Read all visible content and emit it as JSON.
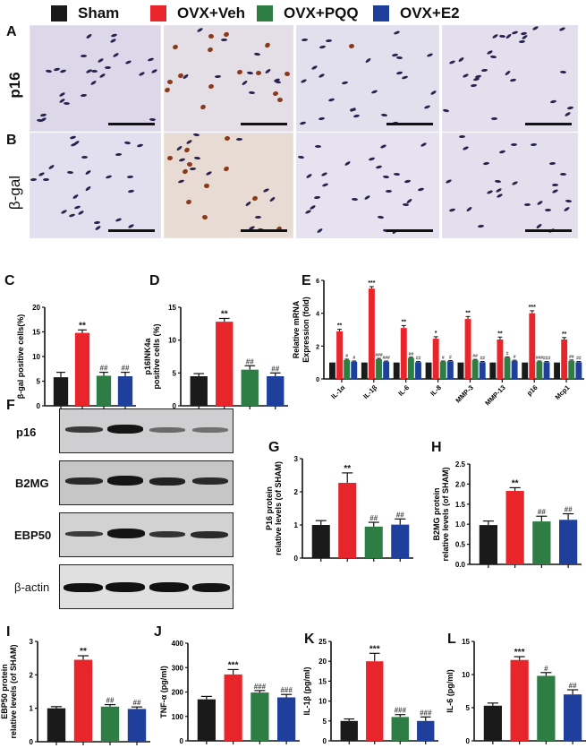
{
  "legend": {
    "items": [
      {
        "label": "Sham",
        "color": "#1a1a1a"
      },
      {
        "label": "OVX+Veh",
        "color": "#e8252b"
      },
      {
        "label": "OVX+PQQ",
        "color": "#2e7d45"
      },
      {
        "label": "OVX+E2",
        "color": "#1e3f9c"
      }
    ]
  },
  "panels": {
    "A": {
      "letter": "A",
      "row_label": "p16"
    },
    "B": {
      "letter": "B",
      "row_label": "β-gal"
    },
    "C": {
      "letter": "C"
    },
    "D": {
      "letter": "D"
    },
    "E": {
      "letter": "E"
    },
    "F": {
      "letter": "F",
      "blots": [
        "p16",
        "B2MG",
        "EBP50",
        "β-actin"
      ]
    },
    "G": {
      "letter": "G"
    },
    "H": {
      "letter": "H"
    },
    "I": {
      "letter": "I"
    },
    "J": {
      "letter": "J"
    },
    "K": {
      "letter": "K"
    },
    "L": {
      "letter": "L"
    }
  },
  "chart_data": [
    {
      "id": "C",
      "type": "bar",
      "categories": [
        "Sham",
        "OVX+Veh",
        "OVX+PQQ",
        "OVX+E2"
      ],
      "values": [
        5.8,
        14.8,
        6.1,
        6.0
      ],
      "errors": [
        1.0,
        0.6,
        0.7,
        0.8
      ],
      "annotations": [
        "",
        "**",
        "##",
        "##"
      ],
      "ylabel": "β-gal positive cells(%)",
      "ylim": [
        0,
        20
      ],
      "yticks": [
        0,
        5,
        10,
        15,
        20
      ]
    },
    {
      "id": "D",
      "type": "bar",
      "categories": [
        "Sham",
        "OVX+Veh",
        "OVX+PQQ",
        "OVX+E2"
      ],
      "values": [
        4.5,
        12.8,
        5.5,
        4.5
      ],
      "errors": [
        0.4,
        0.5,
        0.6,
        0.5
      ],
      "annotations": [
        "",
        "**",
        "##",
        "##"
      ],
      "ylabel": "p16INK4a positive cells (%)",
      "ylim": [
        0,
        15
      ],
      "yticks": [
        0,
        5,
        10,
        15
      ]
    },
    {
      "id": "E",
      "type": "bar",
      "categories": [
        "IL-1α",
        "IL-1β",
        "IL-6",
        "IL-8",
        "MMP-3",
        "MMP-13",
        "p16",
        "Mcp1"
      ],
      "series": [
        {
          "name": "Sham",
          "values": [
            1.0,
            1.0,
            1.0,
            1.0,
            1.0,
            1.0,
            1.0,
            1.0
          ],
          "errors": [
            0,
            0,
            0,
            0,
            0,
            0,
            0,
            0
          ]
        },
        {
          "name": "OVX+Veh",
          "values": [
            2.9,
            5.5,
            3.1,
            2.45,
            3.65,
            2.4,
            4.0,
            2.4
          ],
          "errors": [
            0.12,
            0.12,
            0.15,
            0.12,
            0.15,
            0.15,
            0.15,
            0.12
          ]
        },
        {
          "name": "OVX+PQQ",
          "values": [
            1.15,
            1.2,
            1.28,
            1.05,
            1.15,
            1.3,
            1.05,
            1.1
          ],
          "errors": [
            0.05,
            0.05,
            0.04,
            0.04,
            0.04,
            0.04,
            0.04,
            0.05
          ]
        },
        {
          "name": "OVX+E2",
          "values": [
            1.05,
            1.05,
            1.02,
            1.08,
            1.02,
            1.1,
            1.02,
            1.02
          ],
          "errors": [
            0.04,
            0.04,
            0.04,
            0.04,
            0.04,
            0.04,
            0.04,
            0.04
          ]
        }
      ],
      "annotations": {
        "OVX+Veh": [
          "**",
          "***",
          "**",
          "*",
          "**",
          "**",
          "***",
          "**"
        ],
        "OVX+PQQ": [
          "#",
          "###",
          "##",
          "#",
          "##",
          "#",
          "###",
          "##"
        ],
        "OVX+E2": [
          "#",
          "###",
          "##",
          "#",
          "##",
          "#",
          "###",
          "##"
        ]
      },
      "ylabel": "Relative mRNA Expression (fold)",
      "ylim": [
        0,
        6
      ],
      "yticks": [
        0,
        2,
        4,
        6
      ]
    },
    {
      "id": "G",
      "type": "bar",
      "categories": [
        "Sham",
        "OVX+Veh",
        "OVX+PQQ",
        "OVX+E2"
      ],
      "values": [
        1.0,
        2.27,
        0.95,
        1.01
      ],
      "errors": [
        0.13,
        0.3,
        0.13,
        0.17
      ],
      "annotations": [
        "",
        "**",
        "##",
        "##"
      ],
      "ylabel": "P16 protein relative levels (of SHAM)",
      "ylim": [
        0,
        3
      ],
      "yticks": [
        0,
        1,
        2,
        3
      ]
    },
    {
      "id": "H",
      "type": "bar",
      "categories": [
        "Sham",
        "OVX+Veh",
        "OVX+PQQ",
        "OVX+E2"
      ],
      "values": [
        0.98,
        1.83,
        1.07,
        1.11
      ],
      "errors": [
        0.1,
        0.08,
        0.13,
        0.15
      ],
      "annotations": [
        "",
        "**",
        "##",
        "##"
      ],
      "ylabel": "B2MG protein relative levels (of SHAM)",
      "ylim": [
        0,
        2.5
      ],
      "yticks": [
        0.0,
        0.5,
        1.0,
        1.5,
        2.0,
        2.5
      ]
    },
    {
      "id": "I",
      "type": "bar",
      "categories": [
        "Sham",
        "OVX+Veh",
        "OVX+PQQ",
        "OVX+E2"
      ],
      "values": [
        1.0,
        2.45,
        1.05,
        0.98
      ],
      "errors": [
        0.05,
        0.12,
        0.06,
        0.06
      ],
      "annotations": [
        "",
        "**",
        "##",
        "##"
      ],
      "ylabel": "EBP50 protein relative levels (of SHAM)",
      "ylim": [
        0,
        3
      ],
      "yticks": [
        0,
        1,
        2,
        3
      ]
    },
    {
      "id": "J",
      "type": "bar",
      "categories": [
        "Sham",
        "OVX+Veh",
        "OVX+PQQ",
        "OVX+E2"
      ],
      "values": [
        170,
        272,
        198,
        178
      ],
      "errors": [
        12,
        20,
        8,
        12
      ],
      "annotations": [
        "",
        "***",
        "###",
        "###"
      ],
      "ylabel": "TNF-α (pg/ml)",
      "ylim": [
        0,
        400
      ],
      "yticks": [
        0,
        100,
        200,
        300,
        400
      ]
    },
    {
      "id": "K",
      "type": "bar",
      "categories": [
        "Sham",
        "OVX+Veh",
        "OVX+PQQ",
        "OVX+E2"
      ],
      "values": [
        5.0,
        20.0,
        6.0,
        5.0
      ],
      "errors": [
        0.5,
        2.0,
        0.6,
        1.0
      ],
      "annotations": [
        "",
        "***",
        "###",
        "###"
      ],
      "ylabel": "IL-1β (pg/ml)",
      "ylim": [
        0,
        25
      ],
      "yticks": [
        0,
        5,
        10,
        15,
        20,
        25
      ]
    },
    {
      "id": "L",
      "type": "bar",
      "categories": [
        "Sham",
        "OVX+Veh",
        "OVX+PQQ",
        "OVX+E2"
      ],
      "values": [
        5.3,
        12.2,
        9.8,
        7.0
      ],
      "errors": [
        0.4,
        0.5,
        0.5,
        0.7
      ],
      "annotations": [
        "",
        "***",
        "#",
        "##"
      ],
      "ylabel": "IL-6 (pg/ml)",
      "ylim": [
        0,
        15
      ],
      "yticks": [
        0,
        5,
        10,
        15
      ]
    }
  ]
}
